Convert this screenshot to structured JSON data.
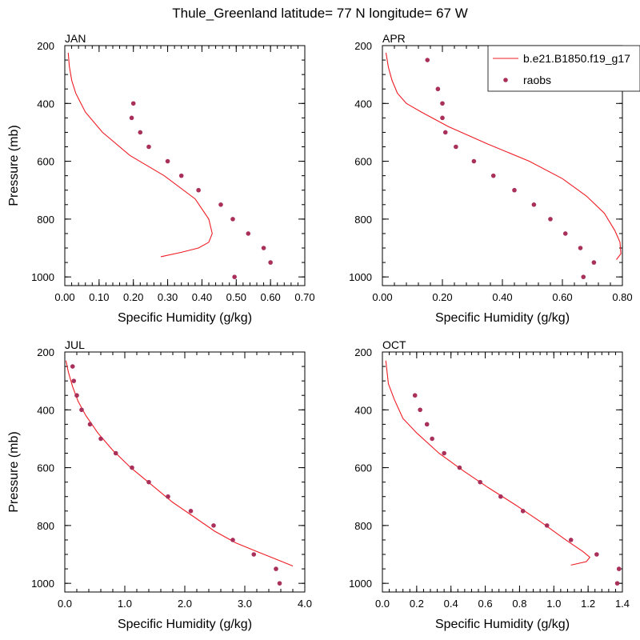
{
  "title": "Thule_Greenland  latitude= 77 N longitude= 67 W",
  "colors": {
    "model": "#ee1c24",
    "raobs": "#a8305a",
    "axis": "#000000"
  },
  "legend": {
    "model_label": "b.e21.B1850.f19_g17",
    "obs_label": "raobs",
    "placement": "top-right of APR panel"
  },
  "chart_data": [
    {
      "type": "line",
      "panel": "JAN",
      "xlabel": "Specific Humidity (g/kg)",
      "ylabel": "Pressure (mb)",
      "xlim": [
        0,
        0.7
      ],
      "ylim": [
        200,
        1030
      ],
      "xticks": [
        0,
        0.1,
        0.2,
        0.3,
        0.4,
        0.5,
        0.6,
        0.7
      ],
      "xtick_labels": [
        "0.00",
        "0.10",
        "0.20",
        "0.30",
        "0.40",
        "0.50",
        "0.60",
        "0.70"
      ],
      "yticks": [
        200,
        400,
        600,
        800,
        1000
      ],
      "ytick_labels": [
        "200",
        "400",
        "600",
        "800",
        "1000"
      ],
      "model": {
        "name": "b.e21.B1850.f19_g17",
        "x": [
          0.01,
          0.013,
          0.02,
          0.032,
          0.06,
          0.11,
          0.19,
          0.29,
          0.38,
          0.42,
          0.43,
          0.42,
          0.39,
          0.34,
          0.28
        ],
        "p": [
          225,
          270,
          320,
          365,
          430,
          500,
          580,
          650,
          730,
          800,
          850,
          880,
          900,
          915,
          930
        ]
      },
      "raobs": {
        "name": "raobs",
        "x": [
          0.2,
          0.195,
          0.22,
          0.245,
          0.3,
          0.34,
          0.39,
          0.455,
          0.49,
          0.535,
          0.58,
          0.6,
          0.495
        ],
        "p": [
          400,
          450,
          500,
          550,
          600,
          650,
          700,
          750,
          800,
          850,
          900,
          950,
          1000
        ]
      }
    },
    {
      "type": "line",
      "panel": "APR",
      "xlabel": "Specific Humidity (g/kg)",
      "ylabel": "",
      "xlim": [
        0,
        0.8
      ],
      "ylim": [
        200,
        1030
      ],
      "xticks": [
        0,
        0.2,
        0.4,
        0.6,
        0.8
      ],
      "xtick_labels": [
        "0.00",
        "0.20",
        "0.40",
        "0.60",
        "0.80"
      ],
      "yticks": [
        200,
        400,
        600,
        800,
        1000
      ],
      "ytick_labels": [
        "200",
        "400",
        "600",
        "800",
        "1000"
      ],
      "model": {
        "name": "b.e21.B1850.f19_g17",
        "x": [
          0.012,
          0.02,
          0.032,
          0.05,
          0.08,
          0.13,
          0.22,
          0.35,
          0.49,
          0.6,
          0.68,
          0.74,
          0.775,
          0.792,
          0.795,
          0.78
        ],
        "p": [
          225,
          275,
          320,
          365,
          400,
          430,
          480,
          540,
          600,
          660,
          720,
          780,
          840,
          880,
          920,
          940
        ]
      },
      "raobs": {
        "name": "raobs",
        "x": [
          0.15,
          0.185,
          0.2,
          0.2,
          0.21,
          0.245,
          0.305,
          0.37,
          0.44,
          0.505,
          0.56,
          0.61,
          0.66,
          0.705,
          0.67
        ],
        "p": [
          250,
          350,
          400,
          450,
          500,
          550,
          600,
          650,
          700,
          750,
          800,
          850,
          900,
          950,
          1000
        ]
      }
    },
    {
      "type": "line",
      "panel": "JUL",
      "xlabel": "Specific Humidity (g/kg)",
      "ylabel": "Pressure (mb)",
      "xlim": [
        0,
        4.0
      ],
      "ylim": [
        200,
        1030
      ],
      "xticks": [
        0,
        1,
        2,
        3,
        4
      ],
      "xtick_labels": [
        "0.0",
        "1.0",
        "2.0",
        "3.0",
        "4.0"
      ],
      "yticks": [
        200,
        400,
        600,
        800,
        1000
      ],
      "ytick_labels": [
        "200",
        "400",
        "600",
        "800",
        "1000"
      ],
      "model": {
        "name": "b.e21.B1850.f19_g17",
        "x": [
          0.02,
          0.06,
          0.13,
          0.22,
          0.35,
          0.55,
          0.8,
          1.1,
          1.45,
          1.8,
          2.15,
          2.5,
          2.85,
          3.2,
          3.5,
          3.8
        ],
        "p": [
          230,
          270,
          320,
          370,
          420,
          480,
          540,
          600,
          660,
          720,
          770,
          820,
          860,
          890,
          915,
          940
        ]
      },
      "raobs": {
        "name": "raobs",
        "x": [
          0.13,
          0.15,
          0.2,
          0.28,
          0.42,
          0.6,
          0.85,
          1.12,
          1.4,
          1.72,
          2.1,
          2.48,
          2.8,
          3.15,
          3.52,
          3.58
        ],
        "p": [
          250,
          300,
          350,
          400,
          450,
          500,
          550,
          600,
          650,
          700,
          750,
          800,
          850,
          900,
          950,
          1000
        ]
      }
    },
    {
      "type": "line",
      "panel": "OCT",
      "xlabel": "Specific Humidity (g/kg)",
      "ylabel": "",
      "xlim": [
        0,
        1.4
      ],
      "ylim": [
        200,
        1030
      ],
      "xticks": [
        0,
        0.2,
        0.4,
        0.6,
        0.8,
        1.0,
        1.2,
        1.4
      ],
      "xtick_labels": [
        "0.0",
        "0.2",
        "0.4",
        "0.6",
        "0.8",
        "1.0",
        "1.2",
        "1.4"
      ],
      "yticks": [
        200,
        400,
        600,
        800,
        1000
      ],
      "ytick_labels": [
        "200",
        "400",
        "600",
        "800",
        "1000"
      ],
      "model": {
        "name": "b.e21.B1850.f19_g17",
        "x": [
          0.02,
          0.035,
          0.07,
          0.12,
          0.2,
          0.33,
          0.47,
          0.62,
          0.78,
          0.93,
          1.07,
          1.17,
          1.21,
          1.19,
          1.1
        ],
        "p": [
          230,
          310,
          365,
          430,
          480,
          550,
          610,
          670,
          730,
          790,
          850,
          890,
          910,
          925,
          937
        ]
      },
      "raobs": {
        "name": "raobs",
        "x": [
          0.19,
          0.22,
          0.26,
          0.29,
          0.36,
          0.45,
          0.57,
          0.69,
          0.82,
          0.96,
          1.1,
          1.25,
          1.38,
          1.37
        ],
        "p": [
          350,
          400,
          450,
          500,
          550,
          600,
          650,
          700,
          750,
          800,
          850,
          900,
          950,
          1000
        ]
      }
    }
  ]
}
